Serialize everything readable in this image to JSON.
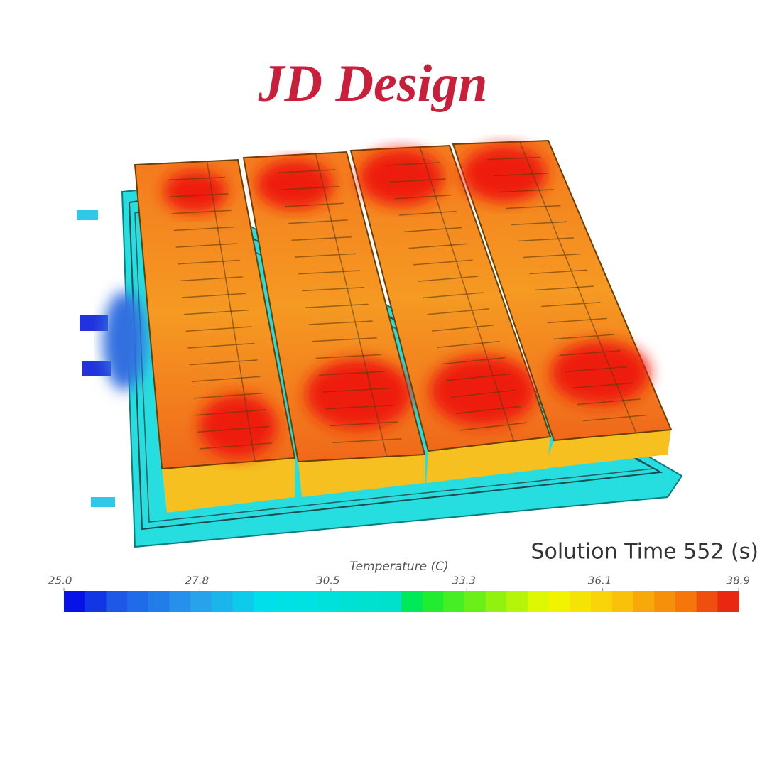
{
  "title": "JD Design",
  "solution_time": "Solution Time 552 (s)",
  "colorbar": {
    "label": "Temperature (C)",
    "lim": [
      25.0,
      38.9
    ],
    "ticks": [
      {
        "value": 25,
        "label": "25.0"
      },
      27.8,
      30.5,
      33.3,
      36.1,
      38.9
    ]
  }
}
